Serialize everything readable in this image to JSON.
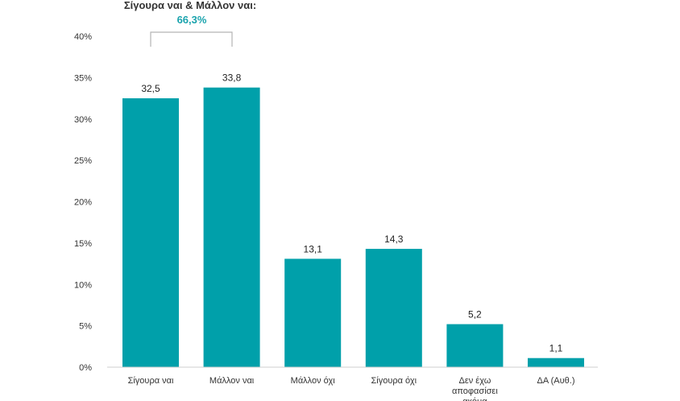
{
  "annotation": {
    "title": "Σίγουρα ναι & Μάλλον ναι:",
    "value": "66,3%"
  },
  "colors": {
    "bar": "#00a0aa",
    "axis": "#cfcfcf",
    "bracket": "#b5b5b5",
    "accent": "#1aa3ad"
  },
  "chart_data": {
    "type": "bar",
    "categories": [
      "Σίγουρα ναι",
      "Μάλλον ναι",
      "Μάλλον όχι",
      "Σίγουρα όχι",
      "Δεν έχω αποφασίσει ακόμα",
      "ΔΑ (Αυθ.)"
    ],
    "values": [
      32.5,
      33.8,
      13.1,
      14.3,
      5.2,
      1.1
    ],
    "value_labels": [
      "32,5",
      "33,8",
      "13,1",
      "14,3",
      "5,2",
      "1,1"
    ],
    "yticks": [
      "0%",
      "5%",
      "10%",
      "15%",
      "20%",
      "25%",
      "30%",
      "35%",
      "40%"
    ],
    "ylim": [
      0,
      40
    ],
    "grid": false
  }
}
